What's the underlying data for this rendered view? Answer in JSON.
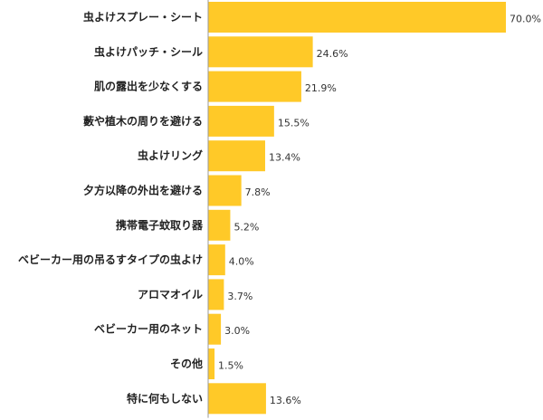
{
  "chart_data": {
    "type": "bar",
    "orientation": "horizontal",
    "categories": [
      "虫よけスプレー・シート",
      "虫よけパッチ・シール",
      "肌の露出を少なくする",
      "藪や植木の周りを避ける",
      "虫よけリング",
      "夕方以降の外出を避ける",
      "携帯電子蚊取り器",
      "ベビーカー用の吊るすタイプの虫よけ",
      "アロマオイル",
      "ベビーカー用のネット",
      "その他",
      "特に何もしない"
    ],
    "values": [
      70.0,
      24.6,
      21.9,
      15.5,
      13.4,
      7.8,
      5.2,
      4.0,
      3.7,
      3.0,
      1.5,
      13.6
    ],
    "value_labels": [
      "70.0%",
      "24.6%",
      "21.9%",
      "15.5%",
      "13.4%",
      "7.8%",
      "5.2%",
      "4.0%",
      "3.7%",
      "3.0%",
      "1.5%",
      "13.6%"
    ],
    "unit": "%",
    "xlim": [
      0,
      70
    ],
    "grid": false,
    "legend": "none",
    "bar_color": "#ffc928",
    "axis_color": "#999999"
  }
}
